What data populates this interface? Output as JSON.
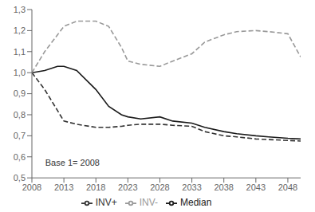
{
  "chart_data": {
    "type": "line",
    "x": [
      2008,
      2010,
      2012,
      2013,
      2015,
      2018,
      2020,
      2022,
      2023,
      2025,
      2028,
      2030,
      2033,
      2035,
      2038,
      2040,
      2043,
      2045,
      2048,
      2050
    ],
    "series": [
      {
        "name": "Median",
        "color": "#1a1a1a",
        "line_style": "solid",
        "values": [
          1.0,
          1.01,
          1.03,
          1.03,
          1.01,
          0.92,
          0.84,
          0.8,
          0.79,
          0.78,
          0.79,
          0.77,
          0.76,
          0.74,
          0.72,
          0.71,
          0.7,
          0.695,
          0.688,
          0.685
        ]
      },
      {
        "name": "INV+",
        "color": "#333333",
        "line_style": "dashed",
        "values": [
          1.0,
          0.92,
          0.82,
          0.77,
          0.755,
          0.74,
          0.74,
          0.745,
          0.75,
          0.755,
          0.755,
          0.75,
          0.745,
          0.72,
          0.7,
          0.695,
          0.685,
          0.682,
          0.678,
          0.675
        ]
      },
      {
        "name": "INV-",
        "color": "#999999",
        "line_style": "dashed",
        "values": [
          1.0,
          1.1,
          1.18,
          1.22,
          1.245,
          1.245,
          1.22,
          1.12,
          1.055,
          1.04,
          1.03,
          1.055,
          1.09,
          1.145,
          1.18,
          1.195,
          1.2,
          1.195,
          1.185,
          1.075
        ]
      }
    ],
    "xlim": [
      2008,
      2050
    ],
    "ylim": [
      0.5,
      1.3
    ],
    "xticks": [
      2008,
      2013,
      2018,
      2023,
      2028,
      2033,
      2038,
      2043,
      2048
    ],
    "yticks": [
      {
        "value": 0.5,
        "label": "0,5"
      },
      {
        "value": 0.6,
        "label": "0,6"
      },
      {
        "value": 0.7,
        "label": "0,7"
      },
      {
        "value": 0.8,
        "label": "0,8"
      },
      {
        "value": 0.9,
        "label": "0,9"
      },
      {
        "value": 1.0,
        "label": "1,0"
      },
      {
        "value": 1.1,
        "label": "1,1"
      },
      {
        "value": 1.2,
        "label": "1,2"
      },
      {
        "value": 1.3,
        "label": "1,3"
      }
    ],
    "annotation": "Base 1= 2008",
    "legend": "bottom"
  }
}
